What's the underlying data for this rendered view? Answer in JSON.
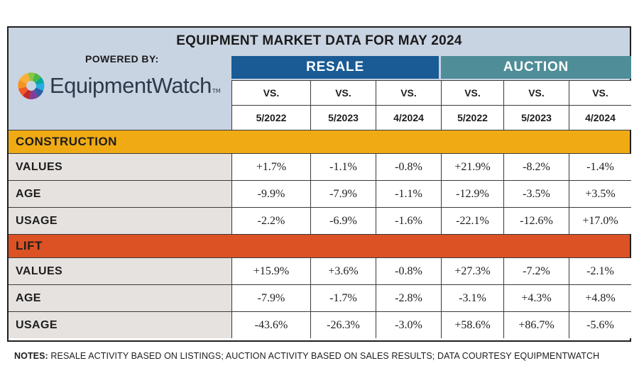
{
  "title": "EQUIPMENT MARKET DATA FOR MAY 2024",
  "powered_by": "POWERED BY:",
  "logo": {
    "name": "EquipmentWatch",
    "tm": "TM",
    "icon": "gear-logo-icon"
  },
  "groups": [
    {
      "label": "RESALE",
      "color": "#1a5b95"
    },
    {
      "label": "AUCTION",
      "color": "#4f8d98"
    }
  ],
  "vs_label": "VS.",
  "columns": [
    "5/2022",
    "5/2023",
    "4/2024",
    "5/2022",
    "5/2023",
    "4/2024"
  ],
  "sections": [
    {
      "name": "CONSTRUCTION",
      "color": "#f0ab14",
      "rows": [
        {
          "label": "VALUES",
          "values": [
            "+1.7%",
            "-1.1%",
            "-0.8%",
            "+21.9%",
            "-8.2%",
            "-1.4%"
          ]
        },
        {
          "label": "AGE",
          "values": [
            "-9.9%",
            "-7.9%",
            "-1.1%",
            "-12.9%",
            "-3.5%",
            "+3.5%"
          ]
        },
        {
          "label": "USAGE",
          "values": [
            "-2.2%",
            "-6.9%",
            "-1.6%",
            "-22.1%",
            "-12.6%",
            "+17.0%"
          ]
        }
      ]
    },
    {
      "name": "LIFT",
      "color": "#dc5224",
      "rows": [
        {
          "label": "VALUES",
          "values": [
            "+15.9%",
            "+3.6%",
            "-0.8%",
            "+27.3%",
            "-7.2%",
            "-2.1%"
          ]
        },
        {
          "label": "AGE",
          "values": [
            "-7.9%",
            "-1.7%",
            "-2.8%",
            "-3.1%",
            "+4.3%",
            "+4.8%"
          ]
        },
        {
          "label": "USAGE",
          "values": [
            "-43.6%",
            "-26.3%",
            "-3.0%",
            "+58.6%",
            "+86.7%",
            "-5.6%"
          ]
        }
      ]
    }
  ],
  "row_label_bg": "#e6e2e0",
  "notes": {
    "label": "NOTES:",
    "text": " RESALE ACTIVITY BASED ON LISTINGS; AUCTION ACTIVITY BASED ON SALES RESULTS; DATA COURTESY EQUIPMENTWATCH"
  }
}
